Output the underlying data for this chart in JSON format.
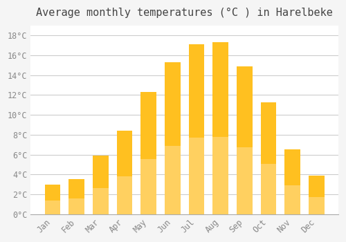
{
  "title": "Average monthly temperatures (°C ) in Harelbeke",
  "months": [
    "Jan",
    "Feb",
    "Mar",
    "Apr",
    "May",
    "Jun",
    "Jul",
    "Aug",
    "Sep",
    "Oct",
    "Nov",
    "Dec"
  ],
  "values": [
    3.0,
    3.5,
    5.9,
    8.4,
    12.3,
    15.3,
    17.1,
    17.3,
    14.9,
    11.3,
    6.5,
    3.9
  ],
  "bar_color_top": "#FFC020",
  "bar_color_bottom": "#FFD060",
  "background_color": "#F5F5F5",
  "plot_bg_color": "#FFFFFF",
  "grid_color": "#CCCCCC",
  "ylim": [
    0,
    19
  ],
  "yticks": [
    0,
    2,
    4,
    6,
    8,
    10,
    12,
    14,
    16,
    18
  ],
  "title_fontsize": 11,
  "tick_fontsize": 8.5,
  "title_color": "#444444",
  "tick_color": "#888888",
  "bar_width": 0.65
}
